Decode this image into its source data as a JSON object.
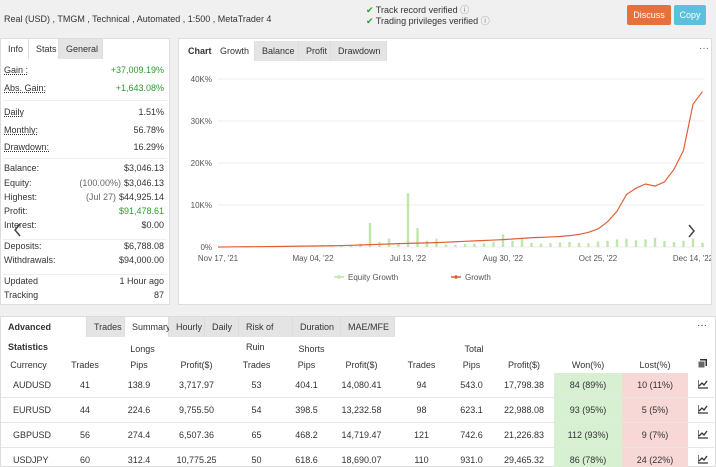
{
  "header": {
    "account": "Real (USD) , TMGM , Technical , Automated , 1:500 , MetaTrader 4",
    "verified": [
      "Track record verified",
      "Trading privileges verified"
    ],
    "buttons": [
      "Discuss",
      "Copy"
    ]
  },
  "info_panel": {
    "tabs": [
      "Info",
      "Stats",
      "General"
    ],
    "rows": [
      {
        "label": "Gain :",
        "value": "+37,009.19%"
      },
      {
        "label": "Abs. Gain:",
        "value": "+1,643.08%"
      },
      {
        "label": "Daily",
        "value": "1.51%"
      },
      {
        "label": "Monthly:",
        "value": "56.78%"
      },
      {
        "label": "Drawdown:",
        "value": "16.29%"
      },
      {
        "label": "Balance:",
        "value": "$3,046.13"
      },
      {
        "label": "Equity:",
        "note": "(100.00%)",
        "value": "$3,046.13"
      },
      {
        "label": "Highest:",
        "note": "(Jul 27)",
        "value": "$44,925.14"
      },
      {
        "label": "Profit:",
        "value": "$91,478.61"
      },
      {
        "label": "Interest:",
        "value": "$0.00"
      },
      {
        "label": "Deposits:",
        "value": "$6,788.08"
      },
      {
        "label": "Withdrawals:",
        "value": "$94,000.00"
      },
      {
        "label": "Updated",
        "value": "1 Hour ago"
      },
      {
        "label": "Tracking",
        "value": "87"
      }
    ]
  },
  "chart_panel": {
    "tabs": [
      "Chart",
      "Growth",
      "Balance",
      "Profit",
      "Drawdown"
    ]
  },
  "chart_data": {
    "type": "line",
    "grid": true,
    "categories": [
      "Nov 17, '21",
      null,
      null,
      null,
      null,
      null,
      null,
      null,
      null,
      null,
      "May 04, '22",
      null,
      null,
      null,
      null,
      null,
      null,
      null,
      null,
      null,
      "Jul 13, '22",
      null,
      null,
      null,
      null,
      null,
      null,
      null,
      null,
      null,
      "Aug 30, '22",
      null,
      null,
      null,
      null,
      null,
      null,
      null,
      null,
      null,
      "Oct 25, '22",
      null,
      null,
      null,
      null,
      null,
      null,
      null,
      null,
      null,
      "Dec 14, '22",
      null
    ],
    "ylim": [
      0,
      42000
    ],
    "yticks": [
      {
        "value": 0,
        "label": "0%"
      },
      {
        "value": 10000,
        "label": "10K%"
      },
      {
        "value": 20000,
        "label": "20K%"
      },
      {
        "value": 30000,
        "label": "30K%"
      },
      {
        "value": 40000,
        "label": "40K%"
      }
    ],
    "series": [
      {
        "name": "Equity Growth",
        "type": "bar",
        "color": "#bfe6ab",
        "values": [
          0,
          0,
          0,
          0,
          0,
          0,
          0,
          0,
          0,
          0,
          100,
          150,
          200,
          300,
          500,
          800,
          5700,
          1200,
          2000,
          800,
          12800,
          4500,
          1500,
          2000,
          600,
          500,
          700,
          800,
          900,
          1200,
          3000,
          1500,
          2200,
          1000,
          800,
          900,
          1100,
          1200,
          1000,
          900,
          1300,
          1500,
          1800,
          2000,
          1600,
          1800,
          2200,
          1400,
          1200,
          1500,
          2000,
          1000
        ]
      },
      {
        "name": "Growth",
        "type": "line",
        "color": "#e0603a",
        "values": [
          0,
          20,
          40,
          60,
          80,
          100,
          120,
          150,
          170,
          200,
          230,
          260,
          300,
          340,
          400,
          480,
          560,
          640,
          720,
          800,
          860,
          920,
          980,
          1050,
          1150,
          1250,
          1350,
          1450,
          1550,
          1650,
          1750,
          1900,
          2050,
          2200,
          2300,
          2400,
          2500,
          2700,
          3000,
          3500,
          4300,
          6000,
          8500,
          12500,
          14000,
          15000,
          14500,
          15500,
          18500,
          23000,
          34000,
          37009
        ]
      }
    ]
  },
  "stats_panel": {
    "tabs": [
      "Advanced Statistics",
      "Trades",
      "Summary",
      "Hourly",
      "Daily",
      "Risk of Ruin",
      "Duration",
      "MAE/MFE"
    ],
    "groups": [
      "Longs",
      "Shorts",
      "Total"
    ],
    "columns": [
      "Currency",
      "Trades",
      "Pips",
      "Profit($)",
      "Trades",
      "Pips",
      "Profit($)",
      "Trades",
      "Pips",
      "Profit($)",
      "Won(%)",
      "Lost(%)"
    ],
    "rows": [
      [
        "AUDUSD",
        "41",
        "138.9",
        "3,717.97",
        "53",
        "404.1",
        "14,080.41",
        "94",
        "543.0",
        "17,798.38",
        "84 (89%)",
        "10 (11%)"
      ],
      [
        "EURUSD",
        "44",
        "224.6",
        "9,755.50",
        "54",
        "398.5",
        "13,232.58",
        "98",
        "623.1",
        "22,988.08",
        "93 (95%)",
        "5 (5%)"
      ],
      [
        "GBPUSD",
        "56",
        "274.4",
        "6,507.36",
        "65",
        "468.2",
        "14,719.47",
        "121",
        "742.6",
        "21,226.83",
        "112 (93%)",
        "9 (7%)"
      ],
      [
        "USDJPY",
        "60",
        "312.4",
        "10,775.25",
        "50",
        "618.6",
        "18,690.07",
        "110",
        "931.0",
        "29,465.32",
        "86 (78%)",
        "24 (22%)"
      ]
    ]
  }
}
